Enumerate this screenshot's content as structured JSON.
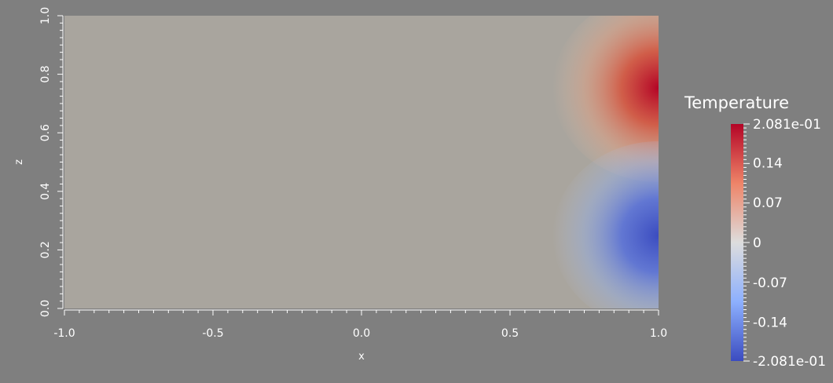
{
  "chart_data": {
    "type": "heatmap",
    "field": "Temperature",
    "xlabel": "x",
    "ylabel": "z",
    "xlim": [
      -1.0,
      1.0
    ],
    "ylim": [
      0.0,
      1.0
    ],
    "x_ticks": [
      "-1.0",
      "-0.5",
      "0.0",
      "0.5",
      "1.0"
    ],
    "x_tick_values": [
      -1.0,
      -0.5,
      0.0,
      0.5,
      1.0
    ],
    "y_ticks": [
      "0.0",
      "0.2",
      "0.4",
      "0.6",
      "0.8",
      "1.0"
    ],
    "y_tick_values": [
      0.0,
      0.2,
      0.4,
      0.6,
      0.8,
      1.0
    ],
    "features": [
      {
        "name": "warm-lobe",
        "x": 1.0,
        "z": 0.75,
        "value": 0.2081
      },
      {
        "name": "cool-lobe",
        "x": 1.0,
        "z": 0.25,
        "value": -0.2081
      }
    ],
    "colorbar": {
      "title": "Temperature",
      "range": [
        -0.2081,
        0.2081
      ],
      "labels": [
        "2.081e-01",
        "0.14",
        "0.07",
        "0",
        "-0.07",
        "-0.14",
        "-2.081e-01"
      ],
      "label_values": [
        0.2081,
        0.14,
        0.07,
        0,
        -0.07,
        -0.14,
        -0.2081
      ],
      "colormap": "cool-to-warm",
      "colors": {
        "high": "#b40426",
        "mid": "#dddddd",
        "low": "#3b4cc0"
      }
    }
  },
  "colors": {
    "background": "#7f7f7f",
    "neutral_field": "#a9a59e",
    "warm": "#b40426",
    "cool": "#3b4cc0",
    "text": "#ffffff"
  }
}
